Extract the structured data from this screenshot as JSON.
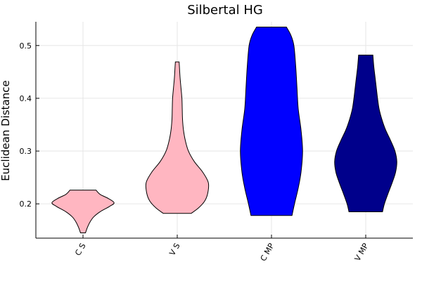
{
  "chart_data": {
    "type": "violin",
    "title": "Silbertal HG",
    "xlabel": "",
    "ylabel": "Euclidean Distance",
    "categories": [
      "C S",
      "V S",
      "C MP",
      "V MP"
    ],
    "ylim": [
      0.135,
      0.545
    ],
    "yticks": [
      0.2,
      0.3,
      0.4,
      0.5
    ],
    "grid": true,
    "legend": "none",
    "series": [
      {
        "category": "C S",
        "color": "#ffb6c1",
        "min": 0.145,
        "max": 0.226,
        "profile": [
          [
            0.145,
            0.08
          ],
          [
            0.155,
            0.14
          ],
          [
            0.165,
            0.22
          ],
          [
            0.175,
            0.34
          ],
          [
            0.185,
            0.55
          ],
          [
            0.195,
            0.85
          ],
          [
            0.202,
            1.0
          ],
          [
            0.21,
            0.82
          ],
          [
            0.218,
            0.55
          ],
          [
            0.226,
            0.42
          ]
        ]
      },
      {
        "category": "V S",
        "color": "#ffb6c1",
        "min": 0.182,
        "max": 0.469,
        "profile": [
          [
            0.182,
            0.45
          ],
          [
            0.192,
            0.68
          ],
          [
            0.205,
            0.88
          ],
          [
            0.22,
            0.98
          ],
          [
            0.24,
            1.0
          ],
          [
            0.26,
            0.82
          ],
          [
            0.28,
            0.55
          ],
          [
            0.3,
            0.36
          ],
          [
            0.32,
            0.26
          ],
          [
            0.34,
            0.2
          ],
          [
            0.36,
            0.17
          ],
          [
            0.38,
            0.16
          ],
          [
            0.4,
            0.15
          ],
          [
            0.42,
            0.12
          ],
          [
            0.44,
            0.09
          ],
          [
            0.46,
            0.07
          ],
          [
            0.469,
            0.06
          ]
        ]
      },
      {
        "category": "C MP",
        "color": "#0000ff",
        "min": 0.178,
        "max": 0.535,
        "profile": [
          [
            0.178,
            0.66
          ],
          [
            0.2,
            0.74
          ],
          [
            0.23,
            0.86
          ],
          [
            0.26,
            0.95
          ],
          [
            0.3,
            1.0
          ],
          [
            0.34,
            0.95
          ],
          [
            0.38,
            0.86
          ],
          [
            0.42,
            0.82
          ],
          [
            0.46,
            0.78
          ],
          [
            0.5,
            0.72
          ],
          [
            0.52,
            0.62
          ],
          [
            0.535,
            0.48
          ]
        ]
      },
      {
        "category": "V MP",
        "color": "#00008b",
        "min": 0.185,
        "max": 0.482,
        "profile": [
          [
            0.185,
            0.54
          ],
          [
            0.2,
            0.6
          ],
          [
            0.22,
            0.72
          ],
          [
            0.24,
            0.85
          ],
          [
            0.26,
            0.96
          ],
          [
            0.28,
            1.0
          ],
          [
            0.3,
            0.94
          ],
          [
            0.32,
            0.8
          ],
          [
            0.34,
            0.64
          ],
          [
            0.36,
            0.52
          ],
          [
            0.38,
            0.43
          ],
          [
            0.4,
            0.38
          ],
          [
            0.42,
            0.34
          ],
          [
            0.44,
            0.3
          ],
          [
            0.46,
            0.26
          ],
          [
            0.482,
            0.23
          ]
        ]
      }
    ]
  }
}
